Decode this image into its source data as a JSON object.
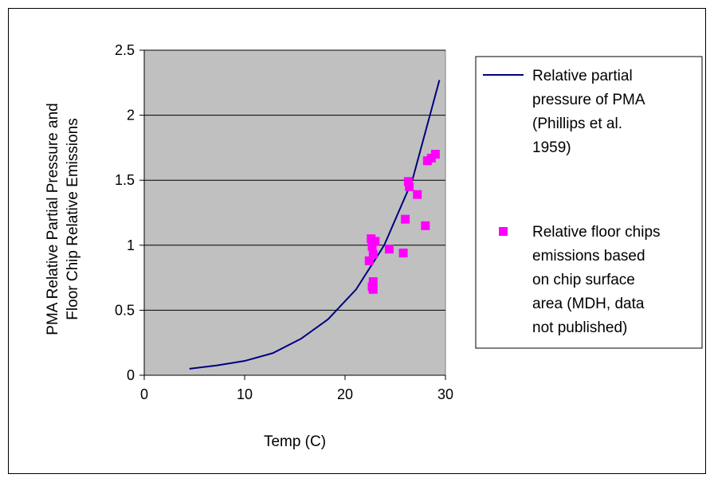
{
  "chart_data": {
    "type": "scatter",
    "title": "",
    "xlabel": "Temp (C)",
    "ylabel_lines": [
      "PMA Relative Partial Pressure and",
      "Floor Chip Relative Emissions"
    ],
    "xlim": [
      0,
      30
    ],
    "ylim": [
      0,
      2.5
    ],
    "x_ticks": [
      0,
      10,
      20,
      30
    ],
    "y_ticks": [
      0,
      0.5,
      1,
      1.5,
      2,
      2.5
    ],
    "x_tick_labels": [
      "0",
      "10",
      "20",
      "30"
    ],
    "y_tick_labels": [
      "0",
      "0.5",
      "1",
      "1.5",
      "2",
      "2.5"
    ],
    "grid": "horizontal",
    "plot_background": "#c0c0c0",
    "legend_position": "right",
    "series": [
      {
        "name_lines": [
          "Relative partial",
          "pressure of PMA",
          "(Phillips et al.",
          "1959)"
        ],
        "kind": "line",
        "color": "#000080",
        "x": [
          4.5,
          7.2,
          10.0,
          12.8,
          15.6,
          18.3,
          21.1,
          23.9,
          26.7,
          29.4
        ],
        "y": [
          0.05,
          0.075,
          0.11,
          0.17,
          0.28,
          0.43,
          0.66,
          1.0,
          1.5,
          2.27
        ]
      },
      {
        "name_lines": [
          "Relative floor chips",
          "emissions based",
          "on chip surface",
          "area (MDH, data",
          "not published)"
        ],
        "kind": "scatter",
        "color": "#ff00ff",
        "x": [
          22.4,
          22.6,
          22.7,
          22.8,
          23.0,
          22.8,
          22.7,
          22.8,
          24.4,
          25.8,
          26.0,
          26.3,
          26.4,
          27.2,
          28.0,
          28.2,
          28.6,
          29.0
        ],
        "y": [
          0.88,
          1.05,
          0.99,
          0.93,
          1.03,
          0.72,
          0.68,
          0.66,
          0.97,
          0.94,
          1.2,
          1.49,
          1.45,
          1.39,
          1.15,
          1.65,
          1.67,
          1.7
        ]
      }
    ]
  }
}
